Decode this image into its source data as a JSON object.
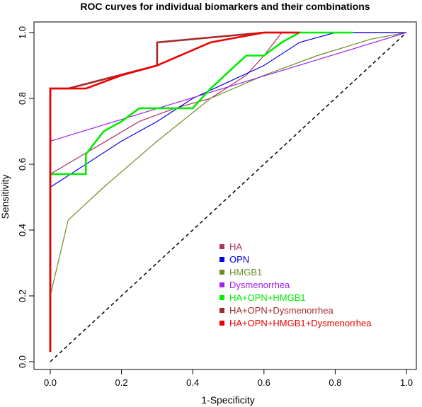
{
  "chart_data": {
    "type": "line",
    "title": "ROC curves for individual biomarkers and their combinations",
    "xlabel": "1-Specificity",
    "ylabel": "Sensitivity",
    "xlim": [
      0,
      1
    ],
    "ylim": [
      0,
      1
    ],
    "x_ticks": [
      "0.0",
      "0.2",
      "0.4",
      "0.6",
      "0.8",
      "1.0"
    ],
    "y_ticks": [
      "0.0",
      "0.2",
      "0.4",
      "0.6",
      "0.8",
      "1.0"
    ],
    "grid": false,
    "legend_position": "bottom-right",
    "reference_line": {
      "x": [
        0,
        1
      ],
      "y": [
        0,
        1
      ],
      "style": "dashed",
      "color": "#000000"
    },
    "series": [
      {
        "name": "HA",
        "color": "#b03060",
        "width": 1.2,
        "x": [
          0,
          0,
          0.25,
          0.35,
          0.45,
          0.55,
          0.6,
          0.65,
          1.0
        ],
        "y": [
          0.03,
          0.57,
          0.73,
          0.77,
          0.8,
          0.87,
          0.93,
          1.0,
          1.0
        ]
      },
      {
        "name": "OPN",
        "color": "#0000ee",
        "width": 1.2,
        "x": [
          0,
          0,
          0.1,
          0.2,
          0.3,
          0.4,
          0.5,
          0.6,
          0.7,
          0.8,
          1.0
        ],
        "y": [
          0.03,
          0.53,
          0.6,
          0.67,
          0.73,
          0.8,
          0.85,
          0.9,
          0.97,
          1.0,
          1.0
        ]
      },
      {
        "name": "HMGB1",
        "color": "#6b8e23",
        "width": 1.2,
        "x": [
          0,
          0,
          0.05,
          0.15,
          0.3,
          0.45,
          0.6,
          0.75,
          0.9,
          1.0
        ],
        "y": [
          0.03,
          0.2,
          0.43,
          0.53,
          0.67,
          0.8,
          0.87,
          0.93,
          0.98,
          1.0
        ]
      },
      {
        "name": "Dysmenorrhea",
        "color": "#a020f0",
        "width": 1.2,
        "x": [
          0,
          0,
          1.0
        ],
        "y": [
          0.03,
          0.67,
          1.0
        ]
      },
      {
        "name": "HA+OPN+HMGB1",
        "color": "#00ee00",
        "width": 2.6,
        "x": [
          0,
          0,
          0.05,
          0.1,
          0.1,
          0.15,
          0.2,
          0.25,
          0.35,
          0.4,
          0.45,
          0.55,
          0.6,
          0.65,
          0.7,
          0.85
        ],
        "y": [
          0.03,
          0.57,
          0.57,
          0.57,
          0.63,
          0.7,
          0.73,
          0.77,
          0.77,
          0.77,
          0.83,
          0.93,
          0.93,
          0.97,
          1.0,
          1.0
        ]
      },
      {
        "name": "HA+OPN+Dysmenorrhea",
        "color": "#a52a2a",
        "width": 2.6,
        "x": [
          0,
          0,
          0.05,
          0.3,
          0.3,
          0.6,
          0.65,
          0.7
        ],
        "y": [
          0.03,
          0.83,
          0.83,
          0.9,
          0.97,
          1.0,
          1.0,
          1.0
        ]
      },
      {
        "name": "HA+OPN+HMGB1+Dysmenorrhea",
        "color": "#ee0000",
        "width": 2.6,
        "x": [
          0,
          0,
          0.1,
          0.2,
          0.3,
          0.45,
          0.6,
          0.7
        ],
        "y": [
          0.03,
          0.83,
          0.83,
          0.87,
          0.9,
          0.97,
          1.0,
          1.0
        ]
      }
    ]
  }
}
